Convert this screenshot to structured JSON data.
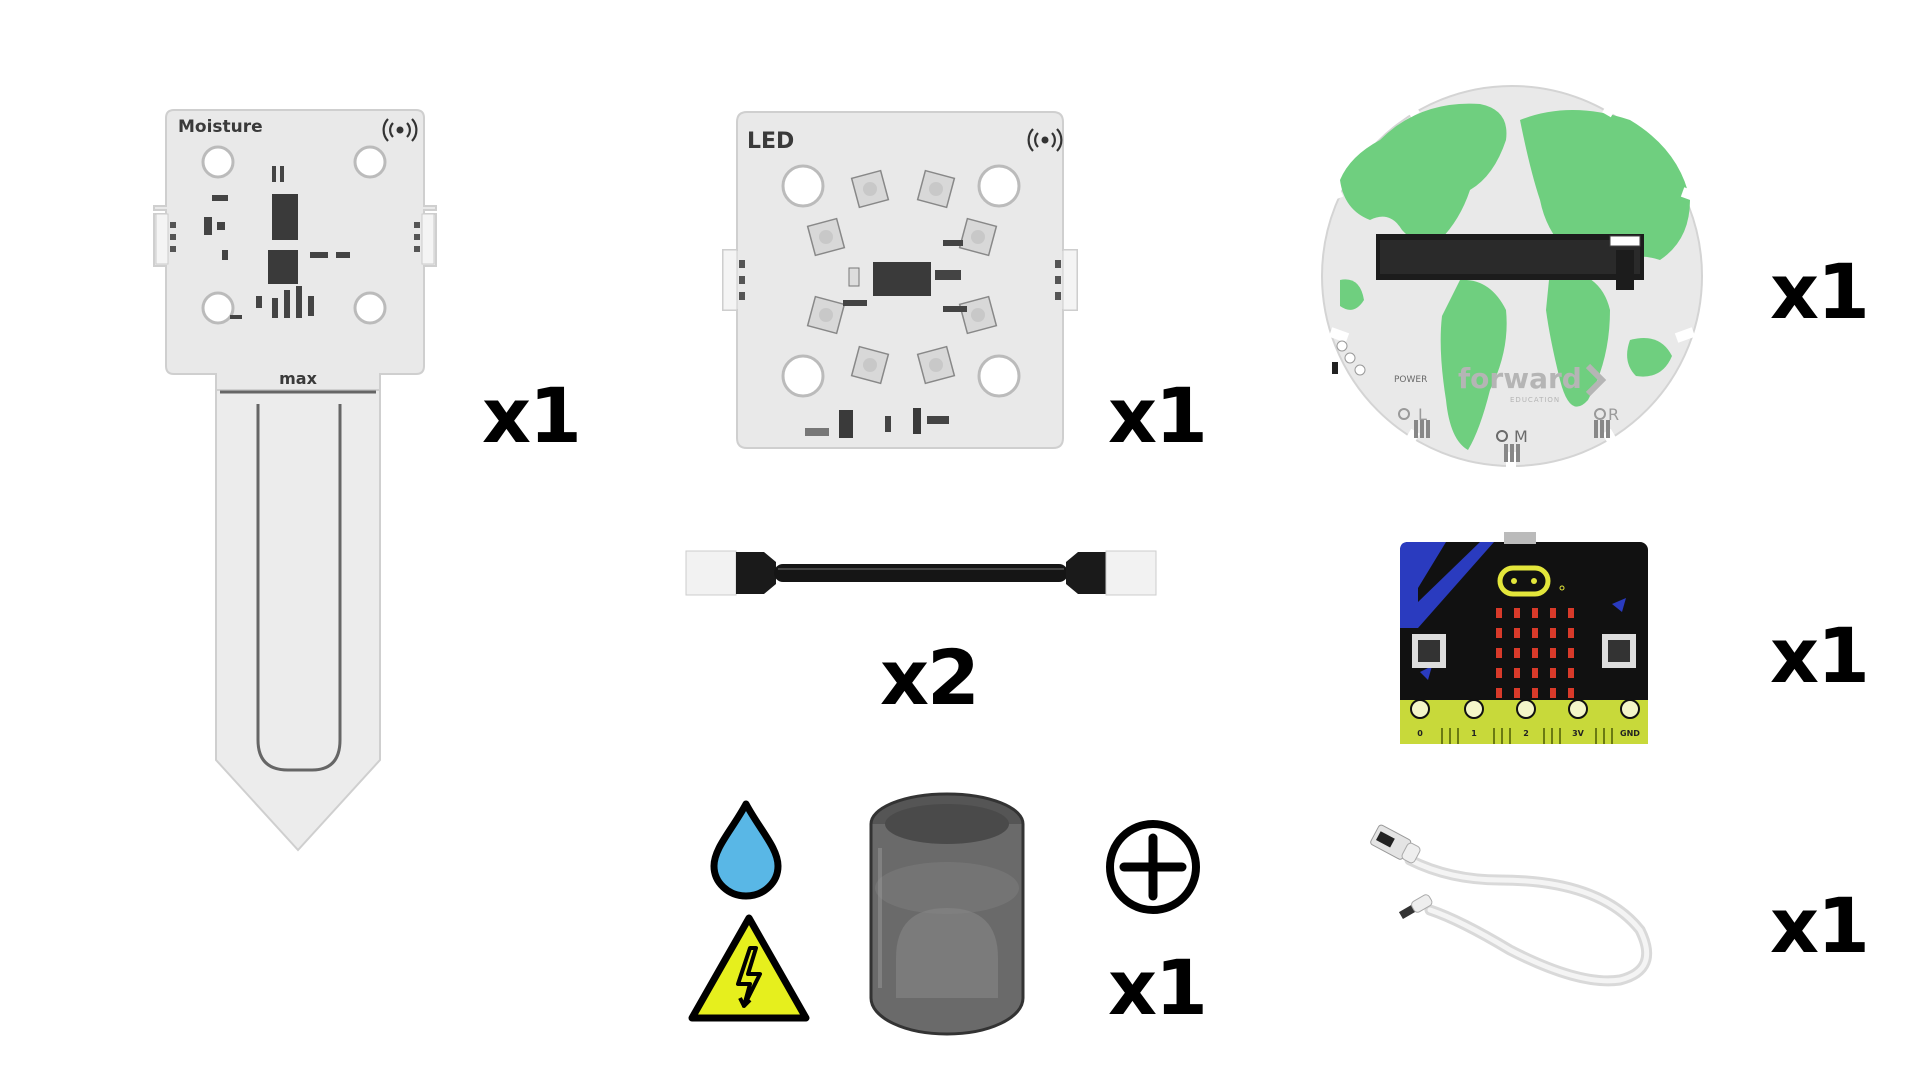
{
  "items": {
    "moisture_sensor": {
      "label": "Moisture",
      "marking": "max",
      "quantity": "x1"
    },
    "led_module": {
      "label": "LED",
      "quantity": "x1"
    },
    "connector_cable": {
      "quantity": "x2"
    },
    "world_board": {
      "brand": "forward",
      "sub_brand": "EDUCATION",
      "port_left": "L",
      "port_middle": "M",
      "port_right": "R",
      "power_label": "POWER",
      "quantity": "x1"
    },
    "microbit": {
      "pins": [
        "0",
        "1",
        "2",
        "3V",
        "GND"
      ],
      "quantity": "x1"
    },
    "water_cup": {
      "quantity": "x1"
    },
    "usb_cable": {
      "quantity": "x1"
    }
  },
  "icons": {
    "water_drop": "water-drop-icon",
    "hazard": "high-voltage-warning-icon",
    "plus": "plus-circle-icon",
    "signal": "wireless-signal-icon"
  },
  "colors": {
    "pcb": "#e9e9e9",
    "continent_green": "#6fcf7f",
    "drop_blue": "#59b7e6",
    "warning_yellow": "#e6ef1d",
    "microbit_black": "#111111",
    "microbit_blue": "#2a3bbf",
    "microbit_led_red": "#d83a2a",
    "edge_yellow": "#c8d93a"
  }
}
